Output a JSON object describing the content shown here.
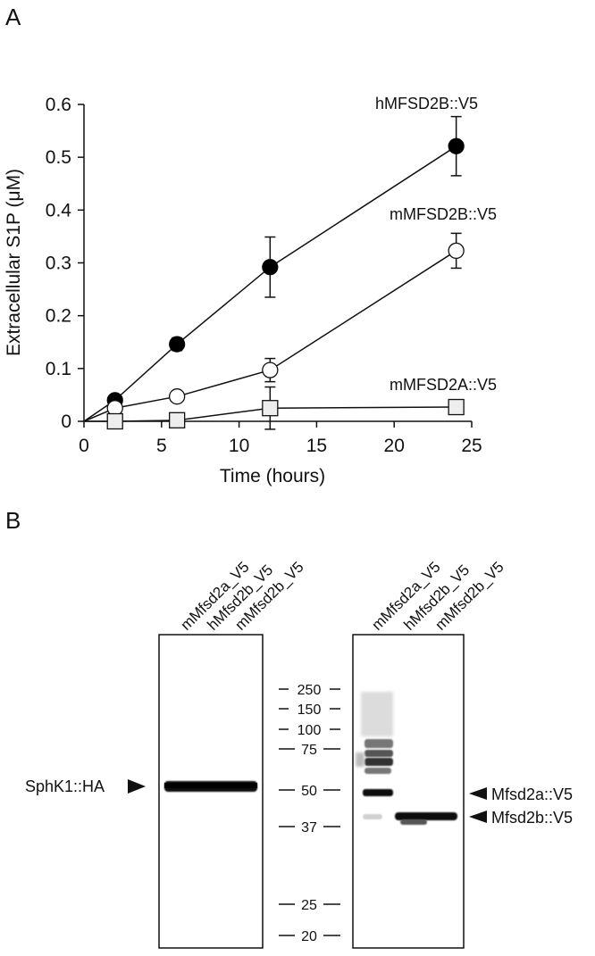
{
  "figure": {
    "panel_a_label": "A",
    "panel_b_label": "B"
  },
  "chart_data": {
    "type": "line",
    "title": "",
    "xlabel": "Time (hours)",
    "ylabel": "Extracellular S1P (μM)",
    "xlim": [
      0,
      25
    ],
    "ylim": [
      0,
      0.6
    ],
    "x_ticks": [
      "0",
      "5",
      "10",
      "15",
      "20",
      "25"
    ],
    "y_ticks": [
      "0",
      "0.1",
      "0.2",
      "0.3",
      "0.4",
      "0.5",
      "0.6"
    ],
    "grid": false,
    "series": [
      {
        "name": "hMFSD2B::V5",
        "marker": "filled-circle",
        "points": [
          {
            "x": 2,
            "y": 0.04,
            "err": 0.007
          },
          {
            "x": 6,
            "y": 0.146,
            "err": 0.012
          },
          {
            "x": 12,
            "y": 0.292,
            "err": 0.057
          },
          {
            "x": 24,
            "y": 0.521,
            "err": 0.056
          }
        ]
      },
      {
        "name": "mMFSD2B::V5",
        "marker": "open-circle",
        "points": [
          {
            "x": 2,
            "y": 0.025,
            "err": 0.005
          },
          {
            "x": 6,
            "y": 0.047,
            "err": 0.005
          },
          {
            "x": 12,
            "y": 0.097,
            "err": 0.022
          },
          {
            "x": 24,
            "y": 0.323,
            "err": 0.033
          }
        ]
      },
      {
        "name": "mMFSD2A::V5",
        "marker": "open-square",
        "points": [
          {
            "x": 2,
            "y": 0.0,
            "err": 0.003
          },
          {
            "x": 6,
            "y": 0.002,
            "err": 0.003
          },
          {
            "x": 12,
            "y": 0.025,
            "err": 0.04
          },
          {
            "x": 24,
            "y": 0.027,
            "err": 0.0
          }
        ]
      }
    ]
  },
  "blot": {
    "left_lanes": [
      "mMfsd2a_V5",
      "hMfsd2b_V5",
      "mMfsd2b_V5"
    ],
    "right_lanes": [
      "mMfsd2a_V5",
      "hMfsd2b_V5",
      "mMfsd2b_V5"
    ],
    "markers": [
      "250",
      "150",
      "100",
      "75",
      "50",
      "37",
      "25",
      "20"
    ],
    "left_band_label": "SphK1::HA",
    "right_band_labels": [
      "Mfsd2a::V5",
      "Mfsd2b::V5"
    ]
  }
}
